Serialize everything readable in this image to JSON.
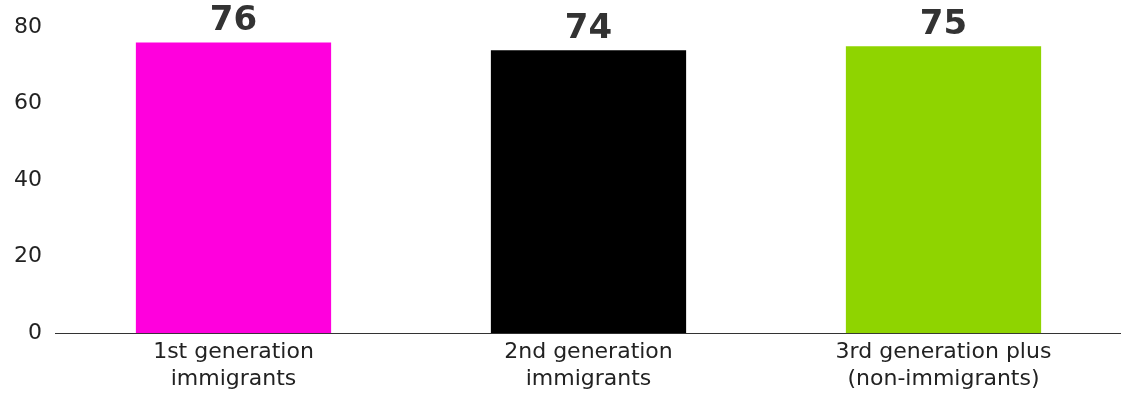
{
  "chart_data": {
    "type": "bar",
    "categories": [
      "1st generation immigrants",
      "2nd generation immigrants",
      "3rd generation plus (non-immigrants)"
    ],
    "values": [
      76,
      74,
      75
    ],
    "colors": [
      "#ff00dd",
      "#000000",
      "#8fd400"
    ],
    "ylim": [
      0,
      80
    ],
    "yticks": [
      0,
      20,
      40,
      60,
      80
    ],
    "grid": false,
    "legend": false,
    "data_labels": true
  }
}
